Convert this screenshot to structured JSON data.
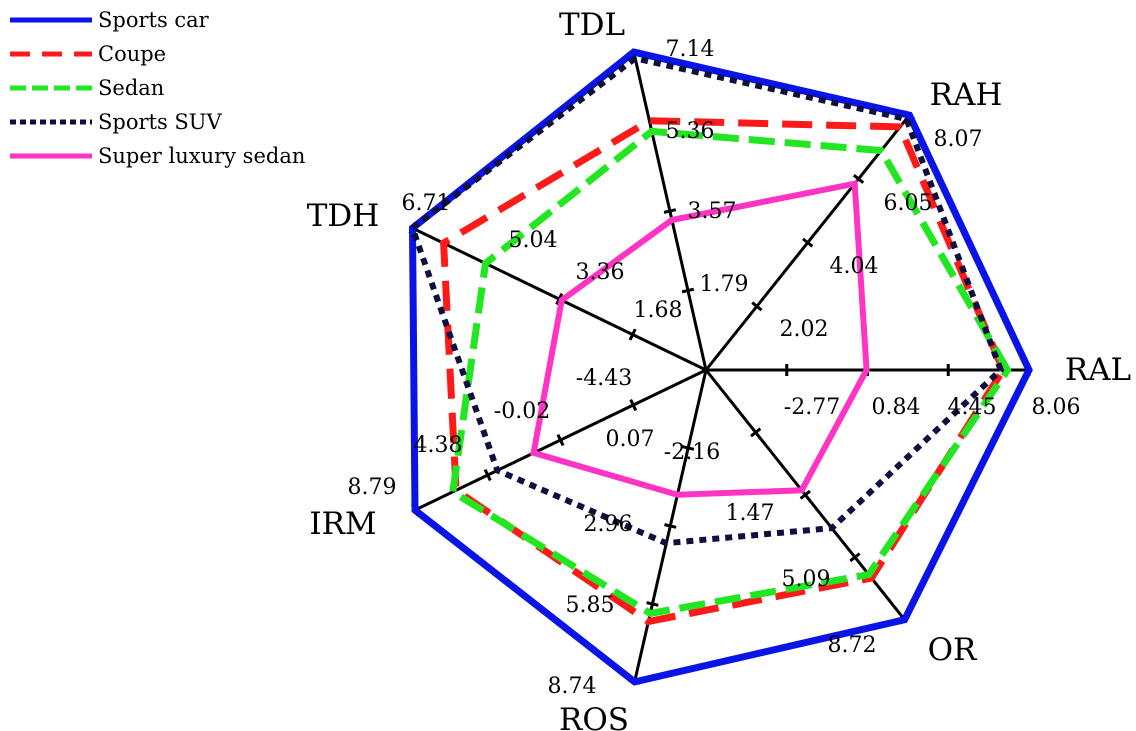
{
  "chart_data": {
    "type": "radar",
    "title": "",
    "axes": [
      "RAL",
      "RAH",
      "TDL",
      "TDH",
      "IRM",
      "ROS",
      "OR"
    ],
    "legend_position": "top-left",
    "series": [
      {
        "name": "Sports car",
        "color": "#0a14e6",
        "dash": "solid",
        "values": [
          8.06,
          8.07,
          7.14,
          6.71,
          8.79,
          8.74,
          8.72
        ]
      },
      {
        "name": "Coupe",
        "color": "#ff1a1a",
        "dash": "dashed",
        "values": [
          6.9,
          7.7,
          5.6,
          6.0,
          6.3,
          6.5,
          6.3
        ]
      },
      {
        "name": "Sedan",
        "color": "#22e622",
        "dash": "dashdot",
        "values": [
          7.1,
          6.95,
          5.36,
          5.04,
          6.5,
          6.2,
          6.1
        ]
      },
      {
        "name": "Sports SUV",
        "color": "#0f1040",
        "dash": "dotted",
        "values": [
          6.8,
          7.95,
          7.0,
          6.71,
          3.8,
          3.6,
          3.4
        ]
      },
      {
        "name": "Super luxury sedan",
        "color": "#ff33c4",
        "dash": "solid",
        "values": [
          0.8,
          5.9,
          3.37,
          3.3,
          1.6,
          1.8,
          1.2
        ]
      }
    ],
    "tick_labels": [
      {
        "axis": "RAL",
        "labels": [
          "-2.77",
          "0.84",
          "4.45",
          "8.06"
        ]
      },
      {
        "axis": "RAH",
        "labels": [
          "2.02",
          "4.04",
          "6.05",
          "8.07"
        ]
      },
      {
        "axis": "TDL",
        "labels": [
          "1.79",
          "3.57",
          "5.36",
          "7.14"
        ]
      },
      {
        "axis": "TDH",
        "labels": [
          "1.68",
          "3.36",
          "5.04",
          "6.71"
        ]
      },
      {
        "axis": "IRM",
        "labels": [
          "-4.43",
          "-0.02",
          "4.38",
          "8.79"
        ]
      },
      {
        "axis": "ROS",
        "labels": [
          "0.07",
          "2.96",
          "5.85",
          "8.74"
        ]
      },
      {
        "axis": "OR",
        "labels": [
          "-2.16",
          "1.47",
          "5.09",
          "8.72"
        ]
      }
    ]
  }
}
